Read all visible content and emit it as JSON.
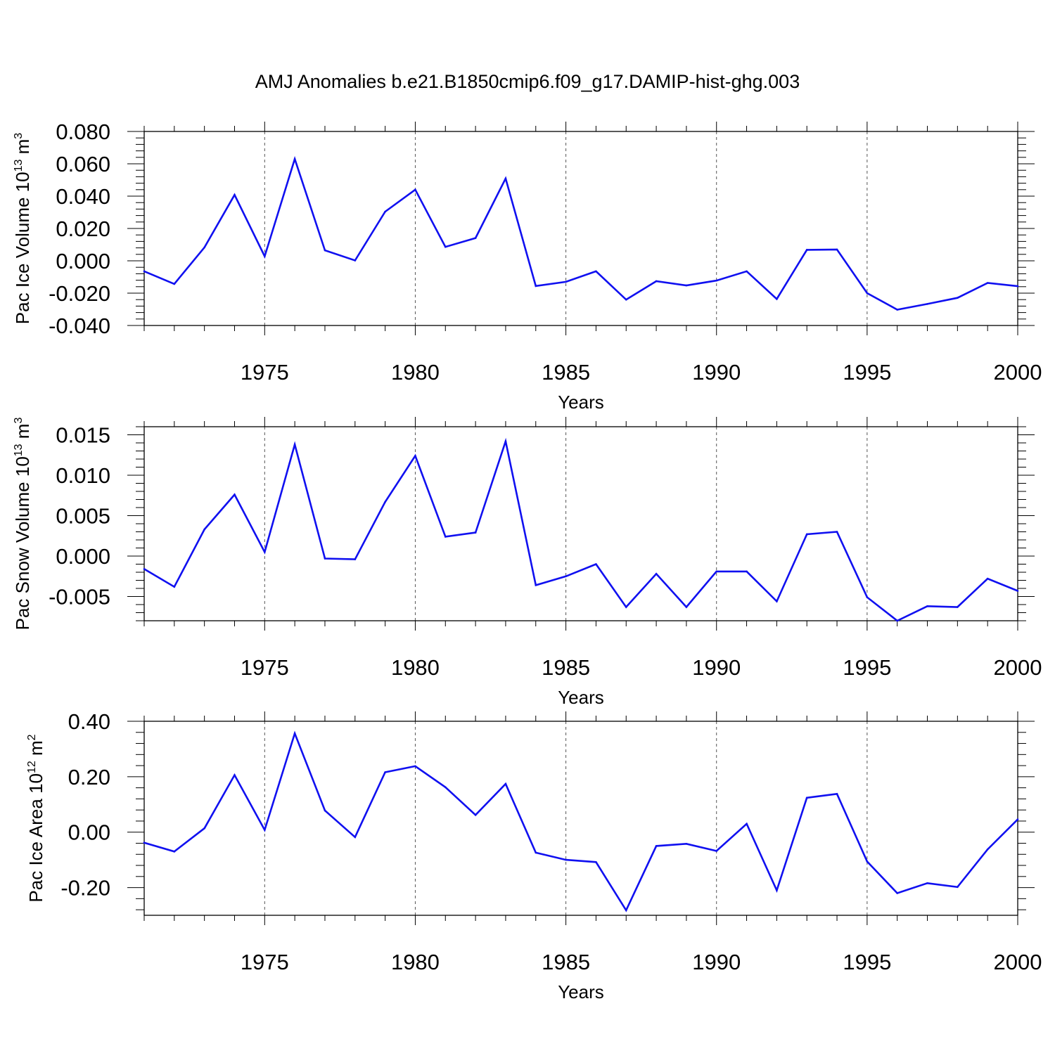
{
  "title": "AMJ Anomalies b.e21.B1850cmip6.f09_g17.DAMIP-hist-ghg.003",
  "line_color": "#1010f0",
  "grid_color": "#555555",
  "chart_data": [
    {
      "type": "line",
      "xlabel": "Years",
      "ylabel": "Pac Ice Volume 10",
      "ylabel_exp": "13",
      "ylabel_unit": " m",
      "ylabel_unit_exp": "3",
      "xlim": [
        1971,
        2000
      ],
      "ylim": [
        -0.04,
        0.08
      ],
      "yticks": [
        -0.04,
        -0.02,
        0.0,
        0.02,
        0.04,
        0.06,
        0.08
      ],
      "ytick_labels": [
        "-0.040",
        "-0.020",
        "0.000",
        "0.020",
        "0.040",
        "0.060",
        "0.080"
      ],
      "xticks": [
        1975,
        1980,
        1985,
        1990,
        1995,
        2000
      ],
      "xtick_labels": [
        "1975",
        "1980",
        "1985",
        "1990",
        "1995",
        "2000"
      ],
      "grid": "vertical dashed at major x ticks",
      "x": [
        1971,
        1972,
        1973,
        1974,
        1975,
        1976,
        1977,
        1978,
        1979,
        1980,
        1981,
        1982,
        1983,
        1984,
        1985,
        1986,
        1987,
        1988,
        1989,
        1990,
        1991,
        1992,
        1993,
        1994,
        1995,
        1996,
        1997,
        1998,
        1999,
        2000
      ],
      "values": [
        -0.0065,
        -0.0143,
        0.0083,
        0.0408,
        0.0028,
        0.063,
        0.0065,
        0.0002,
        0.0304,
        0.044,
        0.0086,
        0.0141,
        0.0509,
        -0.0156,
        -0.013,
        -0.0065,
        -0.024,
        -0.0126,
        -0.0152,
        -0.0122,
        -0.0065,
        -0.0236,
        0.0068,
        0.007,
        -0.02,
        -0.0302,
        -0.0267,
        -0.0229,
        -0.0137,
        -0.0157
      ]
    },
    {
      "type": "line",
      "xlabel": "Years",
      "ylabel": "Pac Snow Volume 10",
      "ylabel_exp": "13",
      "ylabel_unit": " m",
      "ylabel_unit_exp": "3",
      "xlim": [
        1971,
        2000
      ],
      "ylim": [
        -0.008,
        0.016
      ],
      "yticks": [
        -0.005,
        0.0,
        0.005,
        0.01,
        0.015
      ],
      "ytick_labels": [
        "-0.005",
        "0.000",
        "0.005",
        "0.010",
        "0.015"
      ],
      "xticks": [
        1975,
        1980,
        1985,
        1990,
        1995,
        2000
      ],
      "xtick_labels": [
        "1975",
        "1980",
        "1985",
        "1990",
        "1995",
        "2000"
      ],
      "grid": "vertical dashed at major x ticks",
      "x": [
        1971,
        1972,
        1973,
        1974,
        1975,
        1976,
        1977,
        1978,
        1979,
        1980,
        1981,
        1982,
        1983,
        1984,
        1985,
        1986,
        1987,
        1988,
        1989,
        1990,
        1991,
        1992,
        1993,
        1994,
        1995,
        1996,
        1997,
        1998,
        1999,
        2000
      ],
      "values": [
        -0.0016,
        -0.0038,
        0.0033,
        0.0076,
        0.0005,
        0.0138,
        -0.0003,
        -0.0004,
        0.0067,
        0.0124,
        0.0024,
        0.0029,
        0.0142,
        -0.0036,
        -0.0025,
        -0.001,
        -0.0063,
        -0.0022,
        -0.0063,
        -0.0019,
        -0.0019,
        -0.0056,
        0.0027,
        0.003,
        -0.0051,
        -0.008,
        -0.0062,
        -0.0063,
        -0.0028,
        -0.0043
      ]
    },
    {
      "type": "line",
      "xlabel": "Years",
      "ylabel": "Pac Ice Area 10",
      "ylabel_exp": "12",
      "ylabel_unit": " m",
      "ylabel_unit_exp": "2",
      "xlim": [
        1971,
        2000
      ],
      "ylim": [
        -0.3,
        0.4
      ],
      "yticks": [
        -0.2,
        0.0,
        0.2,
        0.4
      ],
      "ytick_labels": [
        "-0.20",
        "0.00",
        "0.20",
        "0.40"
      ],
      "xticks": [
        1975,
        1980,
        1985,
        1990,
        1995,
        2000
      ],
      "xtick_labels": [
        "1975",
        "1980",
        "1985",
        "1990",
        "1995",
        "2000"
      ],
      "grid": "vertical dashed at major x ticks",
      "x": [
        1971,
        1972,
        1973,
        1974,
        1975,
        1976,
        1977,
        1978,
        1979,
        1980,
        1981,
        1982,
        1983,
        1984,
        1985,
        1986,
        1987,
        1988,
        1989,
        1990,
        1991,
        1992,
        1993,
        1994,
        1995,
        1996,
        1997,
        1998,
        1999,
        2000
      ],
      "values": [
        -0.038,
        -0.07,
        0.014,
        0.206,
        0.008,
        0.356,
        0.078,
        -0.018,
        0.216,
        0.238,
        0.162,
        0.062,
        0.174,
        -0.074,
        -0.1,
        -0.108,
        -0.282,
        -0.05,
        -0.042,
        -0.068,
        0.03,
        -0.21,
        0.124,
        0.138,
        -0.106,
        -0.22,
        -0.184,
        -0.198,
        -0.062,
        0.046
      ]
    }
  ]
}
